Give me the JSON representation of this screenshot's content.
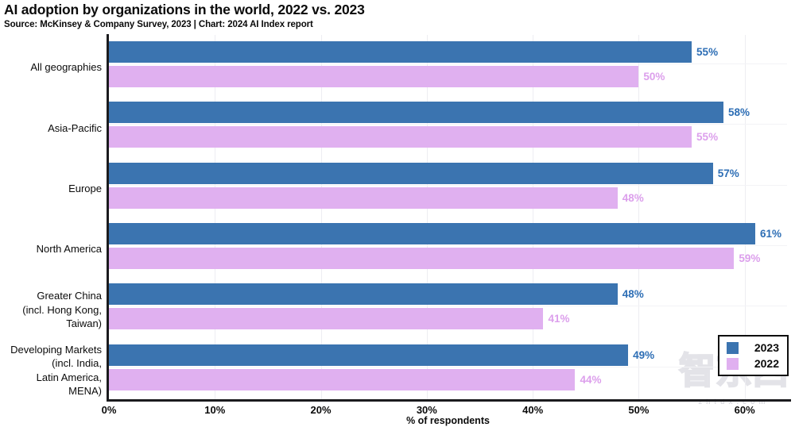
{
  "header": {
    "title": "AI adoption by organizations in the world, 2022 vs. 2023",
    "subtitle": "Source: McKinsey & Company Survey, 2023 | Chart: 2024 AI Index report"
  },
  "chart_data": {
    "type": "bar",
    "orientation": "horizontal",
    "title": "AI adoption by organizations in the world, 2022 vs. 2023",
    "categories": [
      "All geographies",
      "Asia-Pacific",
      "Europe",
      "North America",
      "Greater China (incl. Hong Kong, Taiwan)",
      "Developing Markets (incl. India, Latin America, MENA)"
    ],
    "category_lines": [
      [
        "All geographies"
      ],
      [
        "Asia-Pacific"
      ],
      [
        "Europe"
      ],
      [
        "North America"
      ],
      [
        "Greater China",
        "(incl. Hong Kong,",
        "Taiwan)"
      ],
      [
        "Developing Markets",
        "(incl. India,",
        "Latin America,",
        "MENA)"
      ]
    ],
    "series": [
      {
        "name": "2023",
        "color": "#3b74b0",
        "label_color": "#2d6eb5",
        "values": [
          55,
          58,
          57,
          61,
          48,
          49
        ]
      },
      {
        "name": "2022",
        "color": "#e0b0f0",
        "label_color": "#dc9fec",
        "values": [
          50,
          55,
          48,
          59,
          41,
          44
        ]
      }
    ],
    "value_suffix": "%",
    "xlabel": "% of respondents",
    "x_ticks": [
      "0%",
      "10%",
      "20%",
      "30%",
      "40%",
      "50%",
      "60%"
    ],
    "x_tick_values": [
      0,
      10,
      20,
      30,
      40,
      50,
      60
    ],
    "xlim": [
      0,
      64
    ],
    "grid": true,
    "legend_position": "bottom-right"
  },
  "legend": {
    "items": [
      {
        "label": "2023",
        "color": "#3b74b0"
      },
      {
        "label": "2022",
        "color": "#e0b0f0"
      }
    ]
  },
  "watermark": {
    "text": "智东西",
    "subtext": "zhidx.com"
  }
}
